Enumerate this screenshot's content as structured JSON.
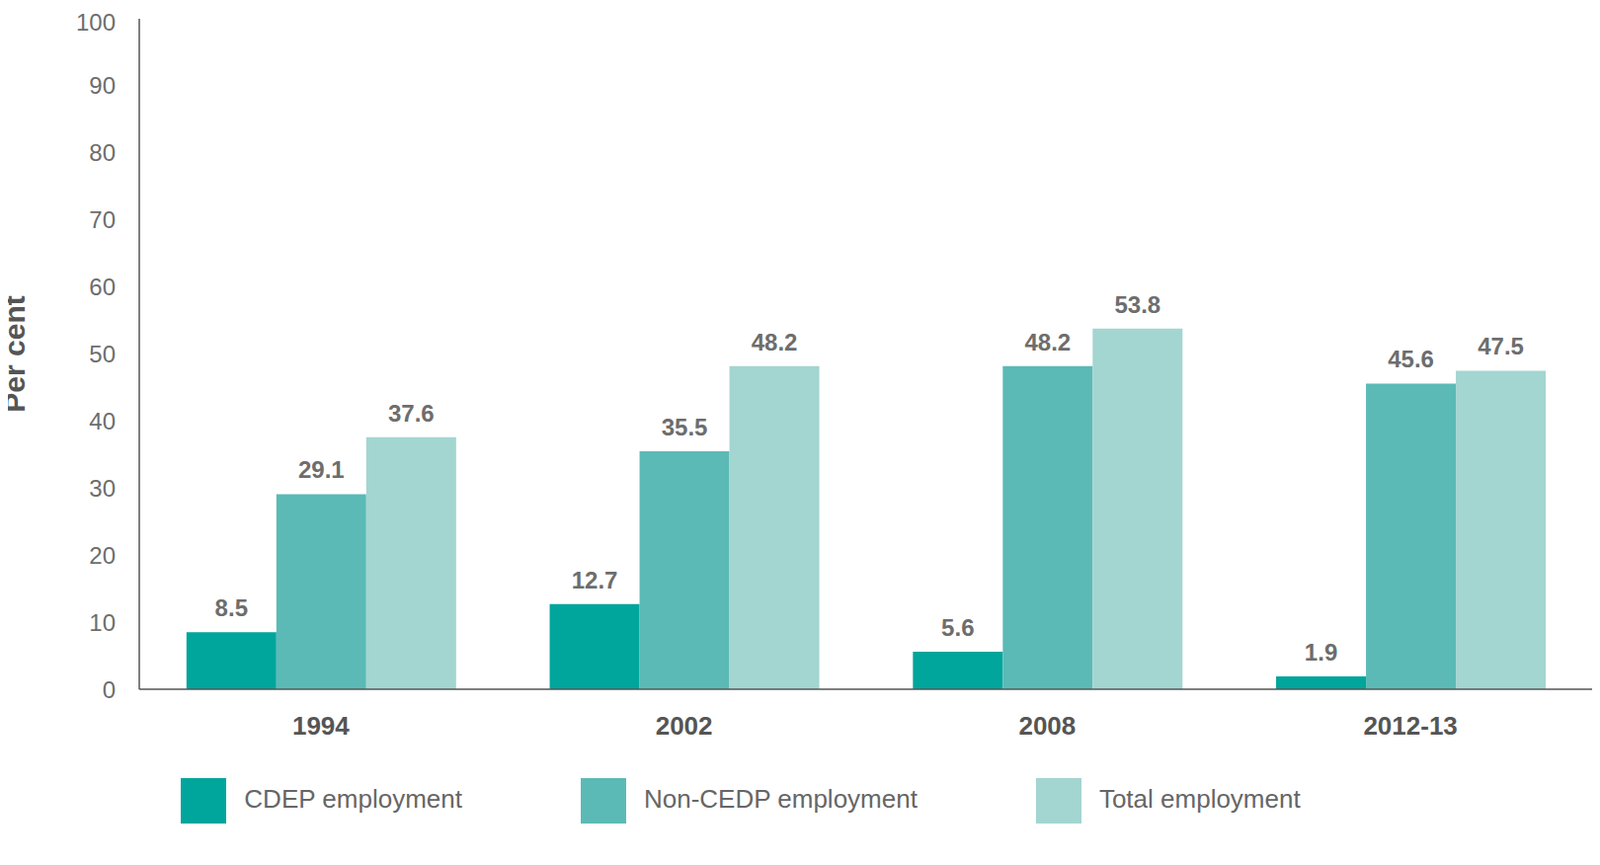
{
  "chart_data": {
    "type": "bar",
    "y_label": "Per cent",
    "categories": [
      "1994",
      "2002",
      "2008",
      "2012-13"
    ],
    "series": [
      {
        "name": "CDEP employment",
        "color": "#00a59b",
        "values": [
          8.5,
          12.7,
          5.6,
          1.9
        ]
      },
      {
        "name": "Non-CEDP employment",
        "color": "#5bbab5",
        "values": [
          29.1,
          35.5,
          48.2,
          45.6
        ]
      },
      {
        "name": "Total employment",
        "color": "#a3d5d1",
        "values": [
          37.6,
          48.2,
          53.8,
          47.5
        ]
      }
    ],
    "ylim": [
      0,
      100
    ],
    "yticks": [
      0,
      10,
      20,
      30,
      40,
      50,
      60,
      70,
      80,
      90,
      100
    ],
    "grid": false,
    "data_labels": true,
    "legend": "bottom"
  }
}
